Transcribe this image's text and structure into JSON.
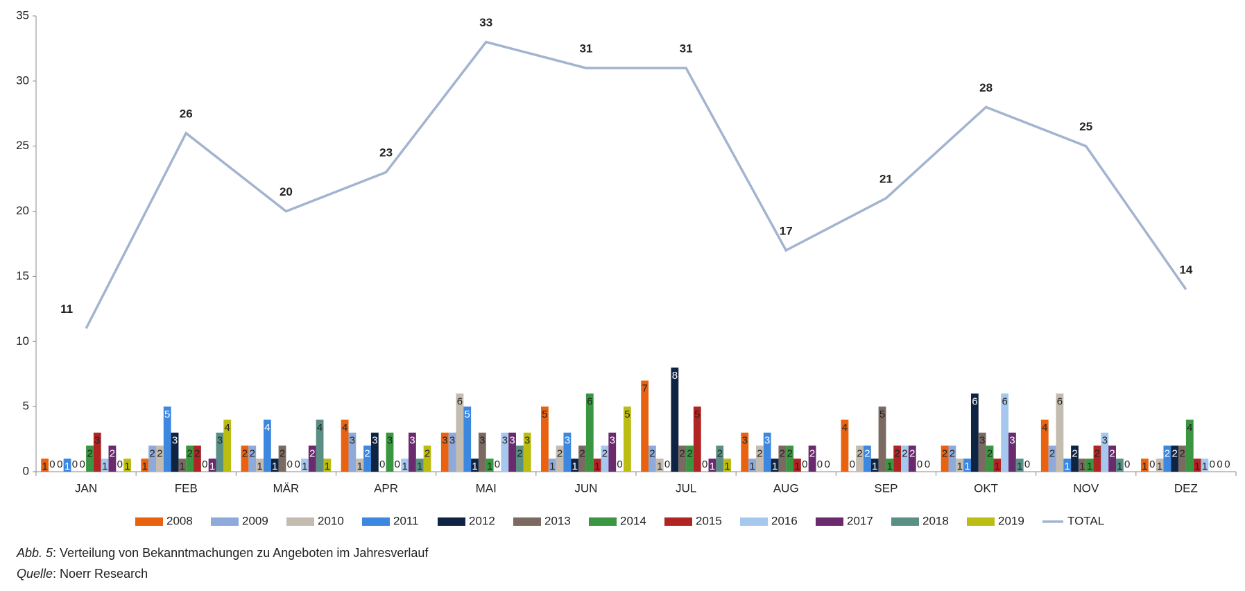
{
  "chart_data": {
    "type": "bar",
    "categories": [
      "JAN",
      "FEB",
      "MÄR",
      "APR",
      "MAI",
      "JUN",
      "JUL",
      "AUG",
      "SEP",
      "OKT",
      "NOV",
      "DEZ"
    ],
    "ylim": [
      0,
      35
    ],
    "yticks": [
      0,
      5,
      10,
      15,
      20,
      25,
      30,
      35
    ],
    "series": [
      {
        "name": "2008",
        "color": "#e8620f",
        "values": [
          1,
          1,
          2,
          4,
          3,
          5,
          7,
          3,
          4,
          2,
          4,
          1
        ]
      },
      {
        "name": "2009",
        "color": "#8eaadb",
        "values": [
          0,
          2,
          2,
          3,
          3,
          1,
          2,
          1,
          0,
          2,
          2,
          0
        ]
      },
      {
        "name": "2010",
        "color": "#c4bcb0",
        "values": [
          0,
          2,
          1,
          1,
          6,
          2,
          1,
          2,
          2,
          1,
          6,
          1
        ]
      },
      {
        "name": "2011",
        "color": "#3c87e0",
        "values": [
          1,
          5,
          4,
          2,
          5,
          3,
          0,
          3,
          2,
          1,
          1,
          2
        ]
      },
      {
        "name": "2012",
        "color": "#0f2443",
        "values": [
          0,
          3,
          1,
          3,
          1,
          1,
          8,
          1,
          1,
          6,
          2,
          2
        ]
      },
      {
        "name": "2013",
        "color": "#7b6a62",
        "values": [
          0,
          1,
          2,
          0,
          3,
          2,
          2,
          2,
          5,
          3,
          1,
          2
        ]
      },
      {
        "name": "2014",
        "color": "#3a9640",
        "values": [
          2,
          2,
          0,
          3,
          1,
          6,
          2,
          2,
          1,
          2,
          1,
          4
        ]
      },
      {
        "name": "2015",
        "color": "#b02424",
        "values": [
          3,
          2,
          0,
          0,
          0,
          1,
          5,
          1,
          2,
          1,
          2,
          1
        ]
      },
      {
        "name": "2016",
        "color": "#a6c8ee",
        "values": [
          1,
          0,
          1,
          1,
          3,
          2,
          0,
          0,
          2,
          6,
          3,
          1
        ]
      },
      {
        "name": "2017",
        "color": "#6b2a6e",
        "values": [
          2,
          1,
          2,
          3,
          3,
          3,
          1,
          2,
          2,
          3,
          2,
          0
        ]
      },
      {
        "name": "2018",
        "color": "#5a8f85",
        "values": [
          0,
          3,
          4,
          1,
          2,
          0,
          2,
          0,
          0,
          1,
          1,
          0
        ]
      },
      {
        "name": "2019",
        "color": "#bcbd12",
        "values": [
          1,
          4,
          1,
          2,
          3,
          5,
          1,
          0,
          0,
          0,
          0,
          0
        ]
      },
      {
        "name": "TOTAL",
        "type": "line",
        "color": "#a3b4d0",
        "values": [
          11,
          26,
          20,
          23,
          33,
          31,
          31,
          17,
          21,
          28,
          25,
          14
        ]
      }
    ],
    "caption": [
      {
        "label": "Abb. 5",
        "text": ": Verteilung von Bekanntmachungen zu Angeboten im Jahresverlauf"
      },
      {
        "label": "Quelle",
        "text": ": Noerr Research"
      }
    ]
  }
}
